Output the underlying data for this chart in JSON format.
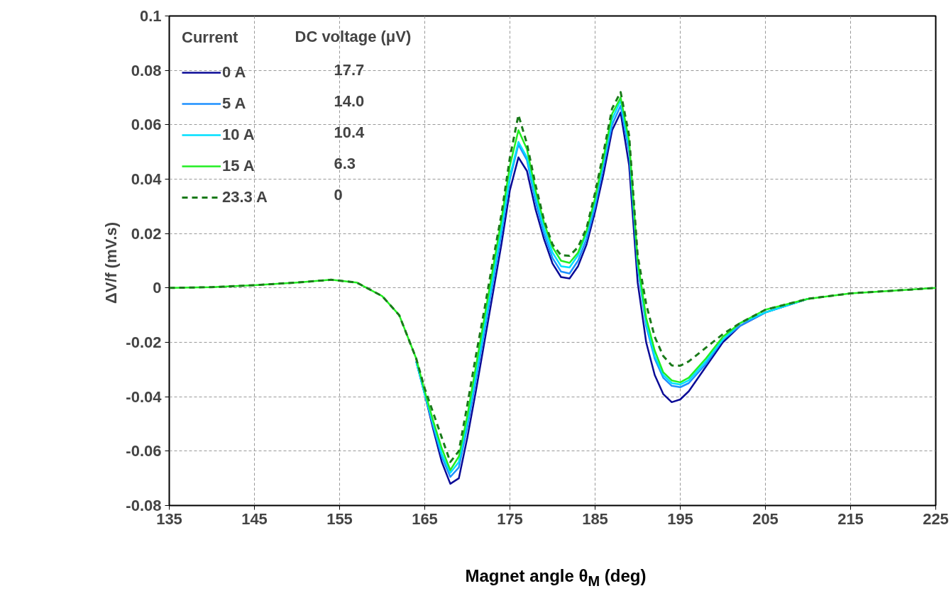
{
  "chart_data": {
    "type": "line",
    "xlabel": "Magnet angle θ$_{M}$ (deg)",
    "ylabel": "ΔV/f  (mV.s)",
    "legend_title": "Current",
    "annotations": [
      "DC voltage (μV)",
      "17.7",
      "14.0",
      "10.4",
      "6.3",
      "0"
    ],
    "x": [
      135,
      140,
      145,
      150,
      154,
      157,
      160,
      162,
      164,
      165,
      166,
      167,
      168,
      169,
      170,
      171,
      172,
      173,
      174,
      175,
      176,
      177,
      178,
      179,
      180,
      181,
      182,
      183,
      184,
      185,
      186,
      187,
      188,
      189,
      190,
      191,
      192,
      193,
      194,
      195,
      196,
      198,
      200,
      202,
      205,
      210,
      215,
      220,
      225
    ],
    "series": [
      {
        "name": "0 A",
        "color": "#0a0a96",
        "line_style": "solid",
        "values": [
          null,
          null,
          null,
          null,
          null,
          null,
          null,
          null,
          -0.027,
          -0.039,
          -0.052,
          -0.064,
          -0.072,
          -0.07,
          -0.055,
          -0.038,
          -0.02,
          -0.002,
          0.016,
          0.036,
          0.048,
          0.043,
          0.029,
          0.018,
          0.009,
          0.004,
          0.0035,
          0.008,
          0.016,
          0.028,
          0.042,
          0.058,
          0.0645,
          0.045,
          0.002,
          -0.02,
          -0.032,
          -0.039,
          -0.042,
          -0.041,
          -0.038,
          -0.029,
          -0.02,
          -0.014,
          -0.009,
          -0.004,
          null,
          null,
          null
        ]
      },
      {
        "name": "5 A",
        "color": "#1e90ff",
        "line_style": "solid",
        "values": [
          null,
          null,
          null,
          null,
          null,
          null,
          null,
          null,
          -0.027,
          -0.039,
          -0.051,
          -0.062,
          -0.0695,
          -0.066,
          -0.051,
          -0.034,
          -0.016,
          0.002,
          0.02,
          0.04,
          0.0527,
          0.047,
          0.032,
          0.02,
          0.011,
          0.006,
          0.0053,
          0.01,
          0.018,
          0.03,
          0.045,
          0.06,
          0.067,
          0.05,
          0.008,
          -0.014,
          -0.026,
          -0.033,
          -0.036,
          -0.0365,
          -0.035,
          -0.028,
          -0.019,
          -0.014,
          -0.009,
          -0.004,
          null,
          null,
          null
        ]
      },
      {
        "name": "10 A",
        "color": "#00e0ff",
        "line_style": "solid",
        "values": [
          null,
          null,
          null,
          null,
          null,
          null,
          null,
          null,
          -0.027,
          -0.039,
          -0.05,
          -0.061,
          -0.068,
          -0.064,
          -0.049,
          -0.032,
          -0.014,
          0.004,
          0.022,
          0.041,
          0.0537,
          0.048,
          0.034,
          0.022,
          0.013,
          0.008,
          0.0075,
          0.012,
          0.02,
          0.032,
          0.047,
          0.062,
          0.069,
          0.052,
          0.009,
          -0.013,
          -0.025,
          -0.032,
          -0.035,
          -0.0355,
          -0.034,
          -0.027,
          -0.019,
          -0.013,
          -0.009,
          -0.004,
          null,
          null,
          null
        ]
      },
      {
        "name": "15 A",
        "color": "#22ee22",
        "line_style": "solid",
        "values": [
          0,
          0.0003,
          0.001,
          0.002,
          0.003,
          0.002,
          -0.003,
          -0.01,
          -0.026,
          -0.038,
          -0.049,
          -0.059,
          -0.067,
          -0.062,
          -0.047,
          -0.029,
          -0.011,
          0.007,
          0.025,
          0.045,
          0.058,
          0.051,
          0.036,
          0.024,
          0.015,
          0.01,
          0.0092,
          0.013,
          0.021,
          0.033,
          0.048,
          0.064,
          0.07,
          0.054,
          0.01,
          -0.011,
          -0.023,
          -0.031,
          -0.034,
          -0.0347,
          -0.033,
          -0.026,
          -0.018,
          -0.013,
          -0.008,
          -0.004,
          -0.002,
          -0.001,
          0
        ]
      },
      {
        "name": "23.3 A",
        "color": "#1a7a1a",
        "line_style": "dashed",
        "values": [
          0,
          0.0003,
          0.001,
          0.002,
          0.003,
          0.002,
          -0.003,
          -0.01,
          -0.026,
          -0.037,
          -0.046,
          -0.055,
          -0.064,
          -0.06,
          -0.043,
          -0.025,
          -0.008,
          0.01,
          0.027,
          0.048,
          0.0636,
          0.053,
          0.038,
          0.025,
          0.016,
          0.012,
          0.0118,
          0.015,
          0.022,
          0.035,
          0.05,
          0.066,
          0.072,
          0.056,
          0.012,
          -0.006,
          -0.018,
          -0.025,
          -0.0285,
          -0.0286,
          -0.027,
          -0.022,
          -0.017,
          -0.013,
          -0.008,
          -0.004,
          -0.002,
          -0.001,
          0
        ]
      }
    ],
    "xlim": [
      135,
      225
    ],
    "ylim": [
      -0.08,
      0.1
    ],
    "xticks": [
      135,
      145,
      155,
      165,
      175,
      185,
      195,
      205,
      215,
      225
    ],
    "yticks": [
      -0.08,
      -0.06,
      -0.04,
      -0.02,
      0,
      0.02,
      0.04,
      0.06,
      0.08,
      0.1
    ],
    "grid": true,
    "legend": "top left",
    "marker": "none"
  }
}
